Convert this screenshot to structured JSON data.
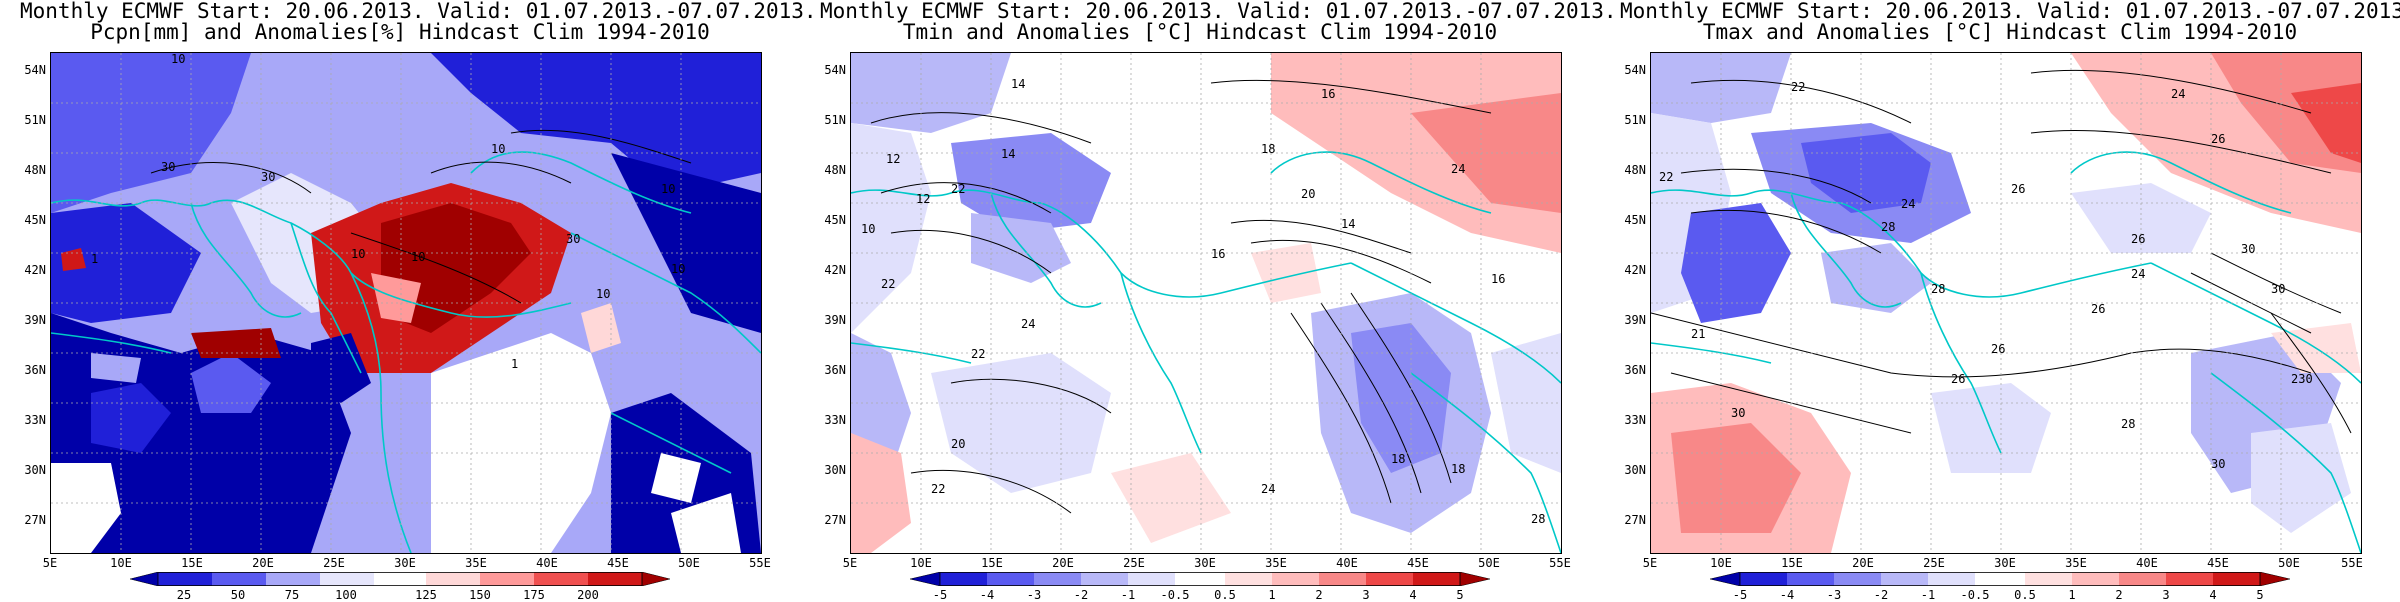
{
  "panels": [
    {
      "title_line1": "Monthly ECMWF Start: 20.06.2013. Valid: 01.07.2013.-07.07.2013.",
      "title_line2": "Pcpn[mm] and Anomalies[%] Hindcast Clim 1994-2010",
      "variable": "precipitation",
      "lat_labels": [
        "54N",
        "51N",
        "48N",
        "45N",
        "42N",
        "39N",
        "36N",
        "33N",
        "30N",
        "27N"
      ],
      "lon_labels": [
        "5E",
        "10E",
        "15E",
        "20E",
        "25E",
        "30E",
        "35E",
        "40E",
        "45E",
        "50E",
        "55E"
      ],
      "colorbar_ticks": [
        "25",
        "50",
        "75",
        "100",
        "125",
        "150",
        "175",
        "200"
      ],
      "colorbar_colors": [
        "#0000a8",
        "#2020d8",
        "#5a5af0",
        "#a8a8f8",
        "#e6e6fc",
        "#ffffff",
        "#ffd8d8",
        "#ff9a9a",
        "#f05050",
        "#d01818",
        "#a00000"
      ],
      "contour_labels": [
        "10",
        "10",
        "30",
        "10",
        "10",
        "30",
        "1",
        "10",
        "10",
        "1",
        "30",
        "10"
      ]
    },
    {
      "title_line1": "Monthly ECMWF Start: 20.06.2013. Valid: 01.07.2013.-07.07.2013.",
      "title_line2": "Tmin and Anomalies [°C] Hindcast Clim 1994-2010",
      "variable": "tmin",
      "lat_labels": [
        "54N",
        "51N",
        "48N",
        "45N",
        "42N",
        "39N",
        "36N",
        "33N",
        "30N",
        "27N"
      ],
      "lon_labels": [
        "5E",
        "10E",
        "15E",
        "20E",
        "25E",
        "30E",
        "35E",
        "40E",
        "45E",
        "50E",
        "55E"
      ],
      "colorbar_ticks": [
        "-5",
        "-4",
        "-3",
        "-2",
        "-1",
        "-0.5",
        "0.5",
        "1",
        "2",
        "3",
        "4",
        "5"
      ],
      "colorbar_colors": [
        "#0000a8",
        "#2020d8",
        "#5a5af0",
        "#8a8af4",
        "#b8b8f8",
        "#e0e0fc",
        "#ffffff",
        "#ffe0e0",
        "#ffbcbc",
        "#f88888",
        "#ee4848",
        "#d01818",
        "#a00000"
      ],
      "contour_labels": [
        "14",
        "16",
        "12",
        "14",
        "12",
        "10",
        "16",
        "18",
        "22",
        "24",
        "20",
        "14",
        "22",
        "22",
        "24",
        "18",
        "20",
        "22",
        "24",
        "16",
        "18",
        "28"
      ]
    },
    {
      "title_line1": "Monthly ECMWF Start: 20.06.2013. Valid: 01.07.2013.-07.07.2013.",
      "title_line2": "Tmax and Anomalies [°C] Hindcast Clim 1994-2010",
      "variable": "tmax",
      "lat_labels": [
        "54N",
        "51N",
        "48N",
        "45N",
        "42N",
        "39N",
        "36N",
        "33N",
        "30N",
        "27N"
      ],
      "lon_labels": [
        "5E",
        "10E",
        "15E",
        "20E",
        "25E",
        "30E",
        "35E",
        "40E",
        "45E",
        "50E",
        "55E"
      ],
      "colorbar_ticks": [
        "-5",
        "-4",
        "-3",
        "-2",
        "-1",
        "-0.5",
        "0.5",
        "1",
        "2",
        "3",
        "4",
        "5"
      ],
      "colorbar_colors": [
        "#0000a8",
        "#2020d8",
        "#5a5af0",
        "#8a8af4",
        "#b8b8f8",
        "#e0e0fc",
        "#ffffff",
        "#ffe0e0",
        "#ffbcbc",
        "#f88888",
        "#ee4848",
        "#d01818",
        "#a00000"
      ],
      "contour_labels": [
        "22",
        "24",
        "26",
        "22",
        "26",
        "24",
        "28",
        "26",
        "24",
        "30",
        "28",
        "26",
        "30",
        "26",
        "21",
        "26",
        "30",
        "28",
        "30",
        "230"
      ]
    }
  ]
}
